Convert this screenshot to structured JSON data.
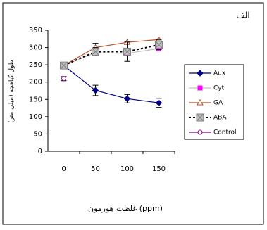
{
  "chart_data": {
    "type": "line",
    "title": "الف",
    "x_label": "غلظت هورمون (ppm)",
    "y_label": "طول گیاهچه (میلی متر)",
    "categories": [
      "0",
      "50",
      "100",
      "150"
    ],
    "ylim": [
      0,
      350
    ],
    "yticks": [
      0,
      50,
      100,
      150,
      200,
      250,
      300,
      350
    ],
    "legend": "right",
    "series": [
      {
        "name": "Aux",
        "color": "#000080",
        "line_color": "#000080",
        "marker": "diamond",
        "marker_fill": "#000080",
        "dashed": false,
        "values": [
          248,
          176,
          152,
          140
        ],
        "errors": [
          null,
          15,
          12,
          13
        ]
      },
      {
        "name": "Cyt",
        "color": "#ff00ff",
        "line_color": "#c0c0c0",
        "marker": "square",
        "marker_fill": "#ff00ff",
        "dashed": false,
        "values": [
          248,
          285,
          283,
          297
        ],
        "errors": [
          null,
          null,
          null,
          null
        ]
      },
      {
        "name": "GA",
        "color": "#b5522a",
        "line_color": "#b5522a",
        "marker": "triangle",
        "marker_fill": "#ffffff",
        "dashed": false,
        "values": [
          248,
          300,
          315,
          323
        ],
        "errors": [
          null,
          12,
          null,
          null
        ]
      },
      {
        "name": "ABA",
        "color": "#808080",
        "line_color": "#000000",
        "marker": "square-x",
        "marker_fill": "#c0c0c0",
        "dashed": true,
        "values": [
          248,
          288,
          288,
          308
        ],
        "errors": [
          null,
          12,
          28,
          14
        ]
      },
      {
        "name": "Control",
        "color": "#800080",
        "line_color": "#800080",
        "marker": "circle",
        "marker_fill": "#ffffff",
        "dashed": false,
        "values": [
          210,
          null,
          null,
          null
        ],
        "errors": [
          6,
          null,
          null,
          null
        ]
      }
    ]
  }
}
